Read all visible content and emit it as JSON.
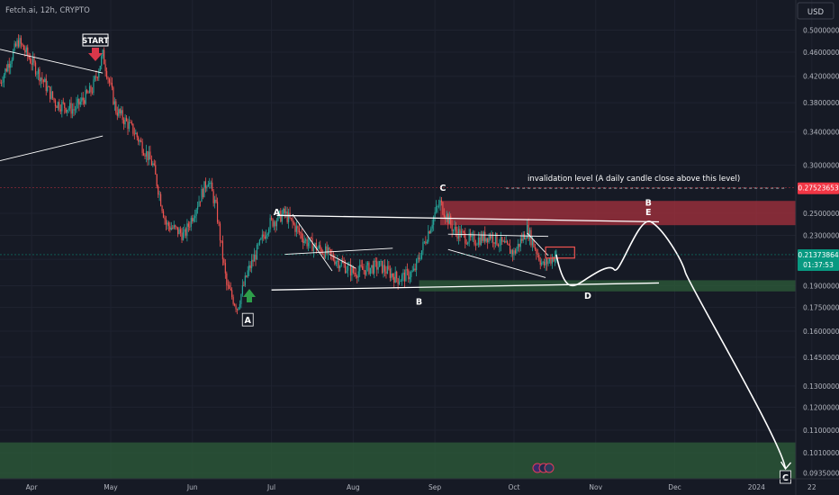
{
  "header": {
    "symbol_label": "Fetch.ai, 12h, CRYPTO"
  },
  "currency": "USD",
  "colors": {
    "background": "#161A25",
    "grid": "#1F2330",
    "up_candle": "#26A69A",
    "down_candle": "#EF5350",
    "annotation": "#FFFFFF",
    "resistance_zone": "#A8323E",
    "support_zone": "#2E5E3A",
    "axis_text": "#B2B5BE",
    "current_price_bg": "#089981",
    "invalidation_price_bg": "#F23645"
  },
  "chart_data": {
    "type": "candlestick",
    "scale": "log",
    "ylim": [
      0.0915,
      0.52
    ],
    "y_ticks": [
      "0.50000000",
      "0.46000000",
      "0.42000000",
      "0.38000000",
      "0.34000000",
      "0.30000000",
      "0.25000000",
      "0.23000000",
      "0.21000000",
      "0.19000000",
      "0.17500000",
      "0.16000000",
      "0.14500000",
      "0.13000000",
      "0.12000000",
      "0.11000000",
      "0.10100000",
      "0.09350000"
    ],
    "x_ticks": [
      "Apr",
      "May",
      "Jun",
      "Jul",
      "Aug",
      "Sep",
      "Oct",
      "Nov",
      "Dec",
      "2024",
      "22"
    ],
    "price_path": [
      {
        "t": "Mar 20",
        "p": 0.41
      },
      {
        "t": "Mar 27",
        "p": 0.48
      },
      {
        "t": "Apr 3",
        "p": 0.43
      },
      {
        "t": "Apr 10",
        "p": 0.38
      },
      {
        "t": "Apr 17",
        "p": 0.37
      },
      {
        "t": "Apr 24",
        "p": 0.4
      },
      {
        "t": "Apr 28",
        "p": 0.455
      },
      {
        "t": "May 3",
        "p": 0.37
      },
      {
        "t": "May 10",
        "p": 0.34
      },
      {
        "t": "May 17",
        "p": 0.3
      },
      {
        "t": "May 22",
        "p": 0.24
      },
      {
        "t": "May 29",
        "p": 0.23
      },
      {
        "t": "Jun 3",
        "p": 0.26
      },
      {
        "t": "Jun 7",
        "p": 0.285
      },
      {
        "t": "Jun 10",
        "p": 0.255
      },
      {
        "t": "Jun 14",
        "p": 0.19
      },
      {
        "t": "Jun 18",
        "p": 0.175
      },
      {
        "t": "Jun 22",
        "p": 0.2
      },
      {
        "t": "Jun 30",
        "p": 0.24
      },
      {
        "t": "Jul 6",
        "p": 0.25
      },
      {
        "t": "Jul 14",
        "p": 0.225
      },
      {
        "t": "Jul 22",
        "p": 0.215
      },
      {
        "t": "Aug 1",
        "p": 0.2
      },
      {
        "t": "Aug 11",
        "p": 0.205
      },
      {
        "t": "Aug 18",
        "p": 0.195
      },
      {
        "t": "Aug 24",
        "p": 0.2
      },
      {
        "t": "Sep 1",
        "p": 0.25
      },
      {
        "t": "Sep 3",
        "p": 0.26
      },
      {
        "t": "Sep 8",
        "p": 0.235
      },
      {
        "t": "Sep 15",
        "p": 0.225
      },
      {
        "t": "Sep 22",
        "p": 0.23
      },
      {
        "t": "Oct 1",
        "p": 0.215
      },
      {
        "t": "Oct 6",
        "p": 0.235
      },
      {
        "t": "Oct 12",
        "p": 0.205
      },
      {
        "t": "Oct 17",
        "p": 0.214
      }
    ],
    "current_price": {
      "value": "0.21373864",
      "countdown": "01:37:53"
    },
    "invalidation_price": {
      "value": "0.27523653"
    },
    "projection": [
      {
        "t": "Oct 17",
        "p": 0.214
      },
      {
        "t": "Oct 26",
        "p": 0.192
      },
      {
        "t": "Nov 8",
        "p": 0.202
      },
      {
        "t": "Nov 22",
        "p": 0.242
      },
      {
        "t": "Dec 5",
        "p": 0.2
      },
      {
        "t": "Jan 12",
        "p": 0.095
      }
    ],
    "zones": [
      {
        "kind": "resistance",
        "from": 0.239,
        "to": 0.262,
        "start": "Sep 3"
      },
      {
        "kind": "support",
        "from": 0.186,
        "to": 0.194,
        "start": "Aug 26"
      },
      {
        "kind": "support",
        "from": 0.0915,
        "to": 0.105,
        "start": "Mar 20"
      }
    ],
    "annotations": {
      "start_label": "START",
      "wave_labels": [
        {
          "text": "A",
          "t": "Jun 22",
          "p": 0.166,
          "boxed": true
        },
        {
          "text": "A",
          "t": "Jul 3",
          "p": 0.25,
          "boxed": false
        },
        {
          "text": "B",
          "t": "Aug 26",
          "p": 0.178,
          "boxed": false
        },
        {
          "text": "C",
          "t": "Sep 4",
          "p": 0.274,
          "boxed": false
        },
        {
          "text": "D",
          "t": "Oct 29",
          "p": 0.182,
          "boxed": false
        },
        {
          "text": "B",
          "t": "Nov 21",
          "p": 0.259,
          "boxed": false
        },
        {
          "text": "E",
          "t": "Nov 21",
          "p": 0.25,
          "boxed": false
        },
        {
          "text": "C",
          "t": "Jan 12",
          "p": 0.0915,
          "boxed": true
        }
      ],
      "invalidation_text": "invalidation level (A daily candle close above this level)"
    }
  }
}
